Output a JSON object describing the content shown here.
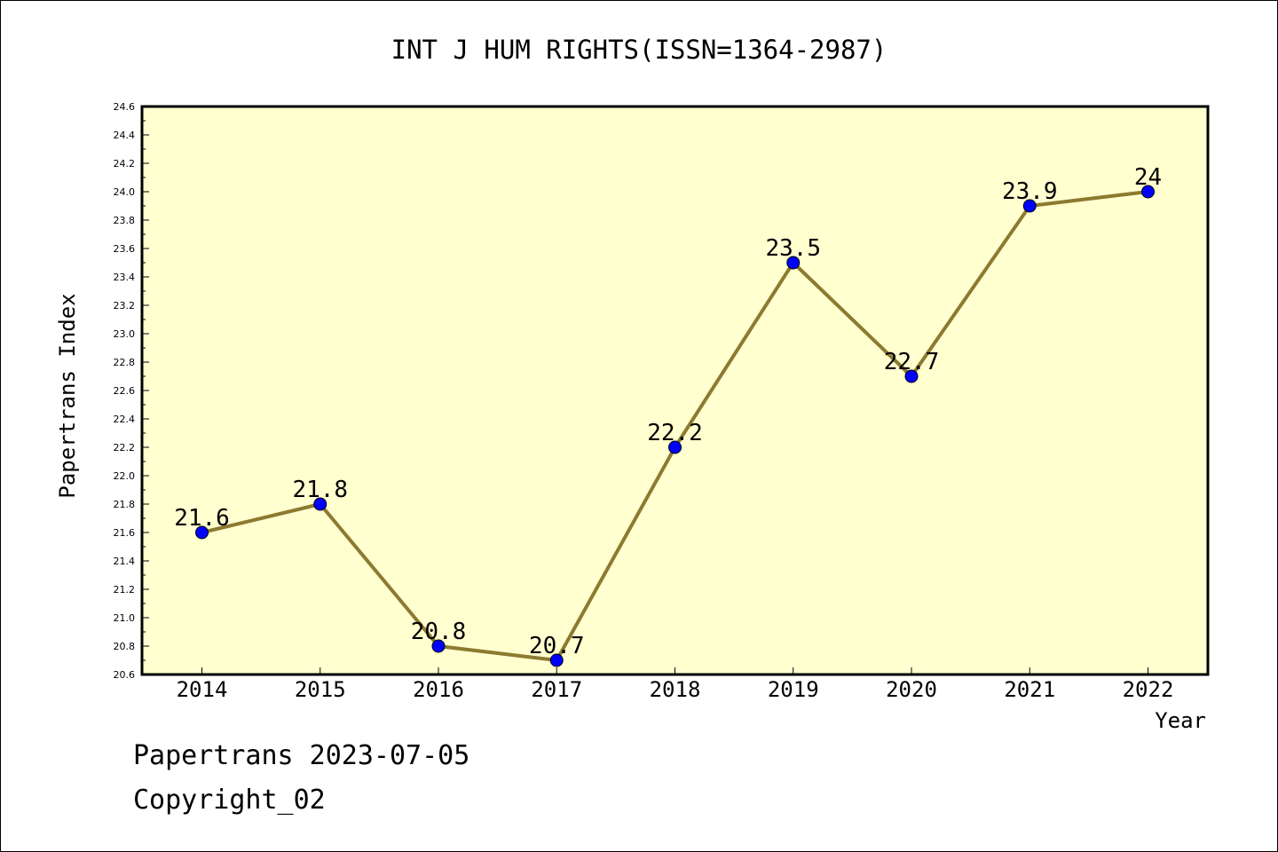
{
  "chart_data": {
    "type": "line",
    "title": "INT J HUM RIGHTS(ISSN=1364-2987)",
    "xlabel": "Year",
    "ylabel": "Papertrans Index",
    "categories": [
      "2014",
      "2015",
      "2016",
      "2017",
      "2018",
      "2019",
      "2020",
      "2021",
      "2022"
    ],
    "series": [
      {
        "values": [
          21.6,
          21.8,
          20.8,
          20.7,
          22.2,
          23.5,
          22.7,
          23.9,
          24.0
        ],
        "labels": [
          "21.6",
          "21.8",
          "20.8",
          "20.7",
          "22.2",
          "23.5",
          "22.7",
          "23.9",
          "24"
        ]
      }
    ],
    "ylim": [
      20.6,
      24.6
    ],
    "ytick_step": 0.2,
    "grid": false,
    "colors": {
      "plot_background": "#ffffd0",
      "line": "#8c7a30",
      "marker": "#0000ff"
    }
  },
  "footer": {
    "line1": "Papertrans 2023-07-05",
    "line2": "Copyright_02"
  }
}
